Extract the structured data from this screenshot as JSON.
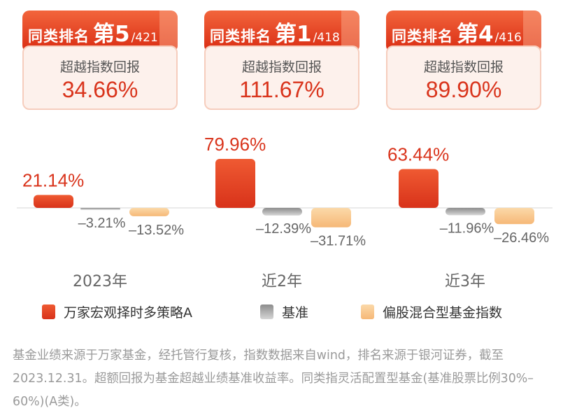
{
  "ranking_cards": [
    {
      "rank_label": "同类排名",
      "rank_value": "第5",
      "rank_total": "/421",
      "excess_label": "超越指数回报",
      "excess_value": "34.66%"
    },
    {
      "rank_label": "同类排名",
      "rank_value": "第1",
      "rank_total": "/418",
      "excess_label": "超越指数回报",
      "excess_value": "111.67%"
    },
    {
      "rank_label": "同类排名",
      "rank_value": "第4",
      "rank_total": "/416",
      "excess_label": "超越指数回报",
      "excess_value": "89.90%"
    }
  ],
  "colors": {
    "fund": "#e2391e",
    "benchmark": "#aaaaaa",
    "index": "#f9c98f",
    "card_red": "#d92b12"
  },
  "chart_data": {
    "type": "bar",
    "title": "",
    "xlabel": "",
    "ylabel": "",
    "categories": [
      "2023年",
      "近2年",
      "近3年"
    ],
    "series": [
      {
        "name": "万家宏观择时多策略A",
        "values": [
          21.14,
          79.96,
          63.44
        ],
        "labels": [
          "21.14%",
          "79.96%",
          "63.44%"
        ],
        "color": "#e2391e"
      },
      {
        "name": "基准",
        "values": [
          -3.21,
          -12.39,
          -11.96
        ],
        "labels": [
          "–3.21%",
          "–12.39%",
          "–11.96%"
        ],
        "color": "#aaaaaa"
      },
      {
        "name": "偏股混合型基金指数",
        "values": [
          -13.52,
          -31.71,
          -26.46
        ],
        "labels": [
          "–13.52%",
          "–31.71%",
          "–26.46%"
        ],
        "color": "#f9c98f"
      }
    ],
    "legend_position": "bottom",
    "grid": false
  },
  "footnote": "基金业绩来源于万家基金，经托管行复核，指数数据来自wind，排名来源于银河证券，截至2023.12.31。超额回报为基金超越业绩基准收益率。同类指灵活配置型基金(基准股票比例30%–60%)(A类)。"
}
